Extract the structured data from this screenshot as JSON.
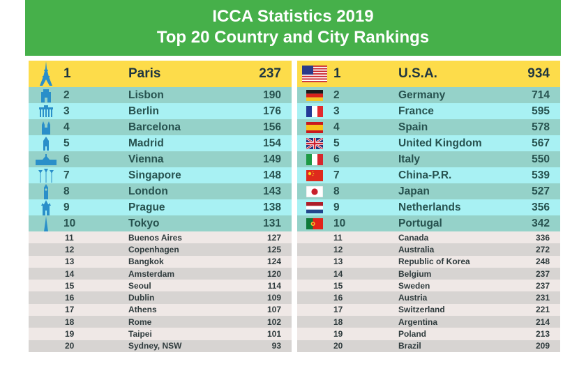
{
  "header": {
    "title_line1": "ICCA Statistics 2019",
    "title_line2": "Top 20 Country and City Rankings",
    "background": "#46b04a"
  },
  "colors": {
    "top_row": "#fddc4a",
    "mid_row_odd": "#95d2c9",
    "mid_row_even": "#a8f1f3",
    "low_row_odd": "#efe8e6",
    "low_row_even": "#d7d4d2",
    "landmark_icon": "#2a8fc9"
  },
  "cities": [
    {
      "rank": "1",
      "name": "Paris",
      "value": "237",
      "icon": "eiffel-tower-icon"
    },
    {
      "rank": "2",
      "name": "Lisbon",
      "value": "190",
      "icon": "lisbon-tower-icon"
    },
    {
      "rank": "3",
      "name": "Berlin",
      "value": "176",
      "icon": "brandenburg-gate-icon"
    },
    {
      "rank": "4",
      "name": "Barcelona",
      "value": "156",
      "icon": "sagrada-familia-icon"
    },
    {
      "rank": "5",
      "name": "Madrid",
      "value": "154",
      "icon": "madrid-building-icon"
    },
    {
      "rank": "6",
      "name": "Vienna",
      "value": "149",
      "icon": "vienna-palace-icon"
    },
    {
      "rank": "7",
      "name": "Singapore",
      "value": "148",
      "icon": "supertree-icon"
    },
    {
      "rank": "8",
      "name": "London",
      "value": "143",
      "icon": "big-ben-icon"
    },
    {
      "rank": "9",
      "name": "Prague",
      "value": "138",
      "icon": "prague-tower-icon"
    },
    {
      "rank": "10",
      "name": "Tokyo",
      "value": "131",
      "icon": "tokyo-tower-icon"
    },
    {
      "rank": "11",
      "name": "Buenos Aires",
      "value": "127"
    },
    {
      "rank": "12",
      "name": "Copenhagen",
      "value": "125"
    },
    {
      "rank": "13",
      "name": "Bangkok",
      "value": "124"
    },
    {
      "rank": "14",
      "name": "Amsterdam",
      "value": "120"
    },
    {
      "rank": "15",
      "name": "Seoul",
      "value": "114"
    },
    {
      "rank": "16",
      "name": "Dublin",
      "value": "109"
    },
    {
      "rank": "17",
      "name": "Athens",
      "value": "107"
    },
    {
      "rank": "18",
      "name": "Rome",
      "value": "102"
    },
    {
      "rank": "19",
      "name": "Taipei",
      "value": "101"
    },
    {
      "rank": "20",
      "name": "Sydney, NSW",
      "value": "93"
    }
  ],
  "countries": [
    {
      "rank": "1",
      "name": "U.S.A.",
      "value": "934",
      "icon": "usa-flag-icon"
    },
    {
      "rank": "2",
      "name": "Germany",
      "value": "714",
      "icon": "germany-flag-icon"
    },
    {
      "rank": "3",
      "name": "France",
      "value": "595",
      "icon": "france-flag-icon"
    },
    {
      "rank": "4",
      "name": "Spain",
      "value": "578",
      "icon": "spain-flag-icon"
    },
    {
      "rank": "5",
      "name": "United Kingdom",
      "value": "567",
      "icon": "uk-flag-icon"
    },
    {
      "rank": "6",
      "name": "Italy",
      "value": "550",
      "icon": "italy-flag-icon"
    },
    {
      "rank": "7",
      "name": "China-P.R.",
      "value": "539",
      "icon": "china-flag-icon"
    },
    {
      "rank": "8",
      "name": "Japan",
      "value": "527",
      "icon": "japan-flag-icon"
    },
    {
      "rank": "9",
      "name": "Netherlands",
      "value": "356",
      "icon": "netherlands-flag-icon"
    },
    {
      "rank": "10",
      "name": "Portugal",
      "value": "342",
      "icon": "portugal-flag-icon"
    },
    {
      "rank": "11",
      "name": "Canada",
      "value": "336"
    },
    {
      "rank": "12",
      "name": "Australia",
      "value": "272"
    },
    {
      "rank": "13",
      "name": "Republic of Korea",
      "value": "248"
    },
    {
      "rank": "14",
      "name": "Belgium",
      "value": "237"
    },
    {
      "rank": "15",
      "name": "Sweden",
      "value": "237"
    },
    {
      "rank": "16",
      "name": "Austria",
      "value": "231"
    },
    {
      "rank": "17",
      "name": "Switzerland",
      "value": "221"
    },
    {
      "rank": "18",
      "name": "Argentina",
      "value": "214"
    },
    {
      "rank": "19",
      "name": "Poland",
      "value": "213"
    },
    {
      "rank": "20",
      "name": "Brazil",
      "value": "209"
    }
  ]
}
